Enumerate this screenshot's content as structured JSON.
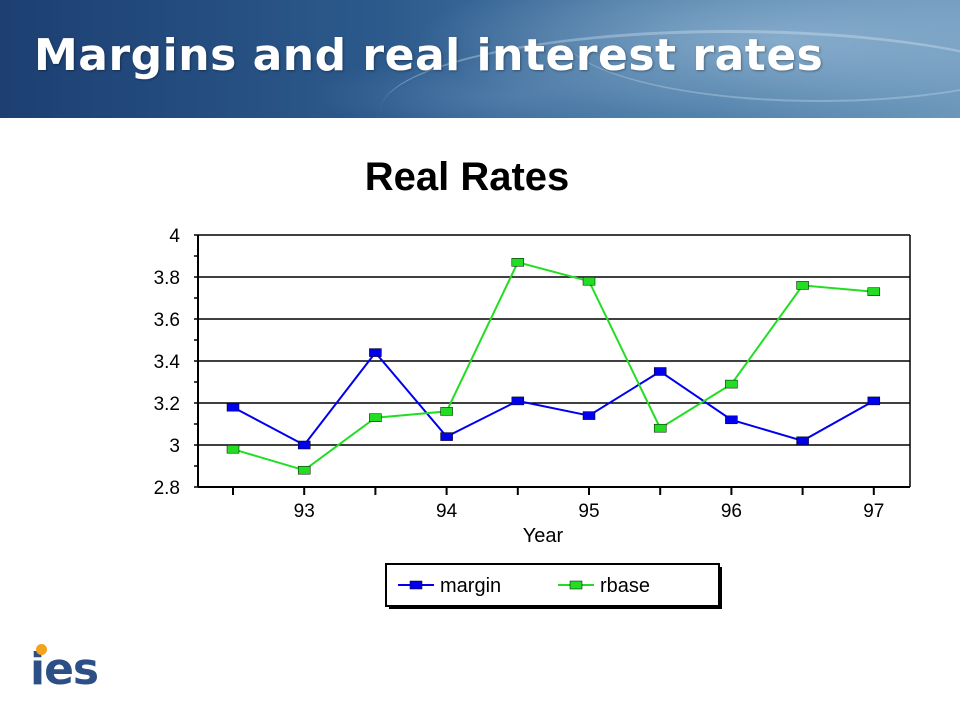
{
  "slide": {
    "title": "Margins and real interest rates",
    "logo_text": "ies"
  },
  "colors": {
    "banner_dark": "#1d3f72",
    "banner_light": "#6c97bb",
    "logo_blue": "#2c4f86",
    "logo_dot": "#f4a21a",
    "margin_series": "#0000ee",
    "rbase_series": "#22dd22"
  },
  "chart_data": {
    "type": "line",
    "title": "Real Rates",
    "xlabel": "Year",
    "ylabel": "",
    "ylim": [
      2.8,
      4
    ],
    "yticks": [
      "4",
      "3.8",
      "3.6",
      "3.4",
      "3.2",
      "3",
      "2.8"
    ],
    "ytick_values": [
      4,
      3.8,
      3.6,
      3.4,
      3.2,
      3,
      2.8
    ],
    "x_tick_labels": [
      "93",
      "94",
      "95",
      "96",
      "97"
    ],
    "x_tick_label_points": [
      1,
      3,
      5,
      7,
      9
    ],
    "grid": "horizontal",
    "legend_position": "bottom-center",
    "series": [
      {
        "name": "margin",
        "color": "#0000ee",
        "values": [
          3.18,
          3.0,
          3.44,
          3.04,
          3.21,
          3.14,
          3.35,
          3.12,
          3.02,
          3.21
        ]
      },
      {
        "name": "rbase",
        "color": "#22dd22",
        "values": [
          2.98,
          2.88,
          3.13,
          3.16,
          3.87,
          3.78,
          3.08,
          3.29,
          3.76,
          3.73
        ]
      }
    ]
  }
}
